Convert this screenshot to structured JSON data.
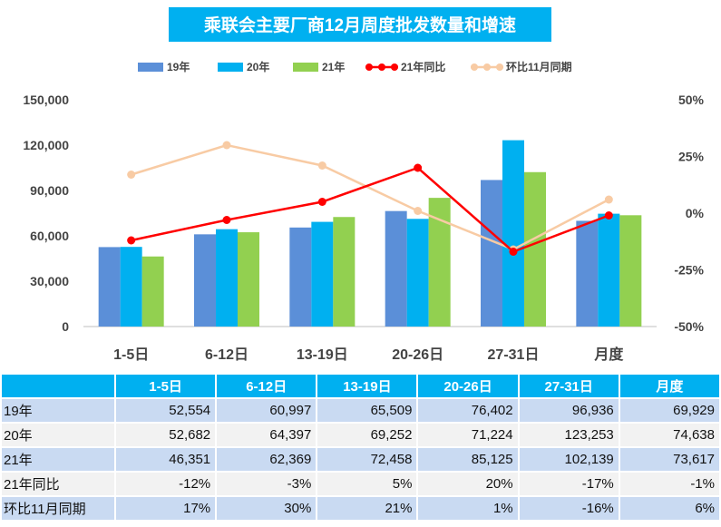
{
  "title": "乘联会主要厂商12月周度批发数量和增速",
  "legend": [
    {
      "name": "19年",
      "kind": "bar",
      "color": "#5b8fd8"
    },
    {
      "name": "20年",
      "kind": "bar",
      "color": "#00b0f0"
    },
    {
      "name": "21年",
      "kind": "bar",
      "color": "#92d050"
    },
    {
      "name": "21年同比",
      "kind": "line",
      "color": "#ff0000"
    },
    {
      "name": "环比11月同期",
      "kind": "line",
      "color": "#f8cba4"
    }
  ],
  "chart_data": {
    "type": "bar",
    "title": "乘联会主要厂商12月周度批发数量和增速",
    "categories": [
      "1-5日",
      "6-12日",
      "13-19日",
      "20-26日",
      "27-31日",
      "月度"
    ],
    "series": [
      {
        "name": "19年",
        "type": "bar",
        "axis": "left",
        "values": [
          52554,
          60997,
          65509,
          76402,
          96936,
          69929
        ]
      },
      {
        "name": "20年",
        "type": "bar",
        "axis": "left",
        "values": [
          52682,
          64397,
          69252,
          71224,
          123253,
          74638
        ]
      },
      {
        "name": "21年",
        "type": "bar",
        "axis": "left",
        "values": [
          46351,
          62369,
          72458,
          85125,
          102139,
          73617
        ]
      },
      {
        "name": "21年同比",
        "type": "line",
        "axis": "right",
        "values": [
          -12,
          -3,
          5,
          20,
          -17,
          -1
        ]
      },
      {
        "name": "环比11月同期",
        "type": "line",
        "axis": "right",
        "values": [
          17,
          30,
          21,
          1,
          -16,
          6
        ]
      }
    ],
    "left_axis": {
      "range": [
        0,
        150000
      ],
      "ticks": [
        "0",
        "30,000",
        "60,000",
        "90,000",
        "120,000",
        "150,000"
      ]
    },
    "right_axis": {
      "range": [
        -50,
        50
      ],
      "ticks": [
        "-50%",
        "-25%",
        "0%",
        "25%",
        "50%"
      ]
    },
    "legend_position": "top"
  },
  "table": {
    "columns": [
      "",
      "1-5日",
      "6-12日",
      "13-19日",
      "20-26日",
      "27-31日",
      "月度"
    ],
    "rows": [
      {
        "label": "19年",
        "cells": [
          "52,554",
          "60,997",
          "65,509",
          "76,402",
          "96,936",
          "69,929"
        ]
      },
      {
        "label": "20年",
        "cells": [
          "52,682",
          "64,397",
          "69,252",
          "71,224",
          "123,253",
          "74,638"
        ]
      },
      {
        "label": "21年",
        "cells": [
          "46,351",
          "62,369",
          "72,458",
          "85,125",
          "102,139",
          "73,617"
        ]
      },
      {
        "label": "21年同比",
        "cells": [
          "-12%",
          "-3%",
          "5%",
          "20%",
          "-17%",
          "-1%"
        ]
      },
      {
        "label": "环比11月同期",
        "cells": [
          "17%",
          "30%",
          "21%",
          "1%",
          "-16%",
          "6%"
        ]
      }
    ]
  }
}
